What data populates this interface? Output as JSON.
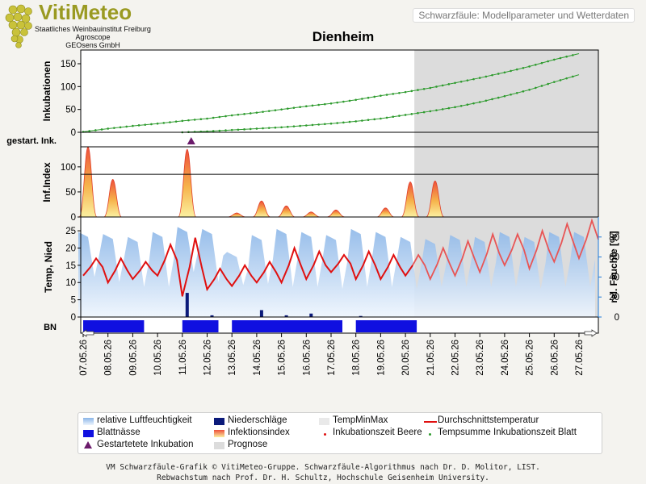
{
  "header": {
    "logo_title": "VitiMeteo",
    "logo_lines": [
      "Staatliches Weinbauinstitut Freiburg",
      "Agroscope",
      "GEOsens GmbH"
    ],
    "page_subtitle": "Schwarzfäule: Modellparameter und Wetterdaten"
  },
  "chart_title": "Dienheim",
  "colors": {
    "grey_prognose": "#dcdcdc",
    "incubation_green": "#2e9b2e",
    "humidity_blue": "#9ec3ea",
    "rain_navy": "#0b1a7a",
    "wetness_blue": "#1010e0",
    "temp_red": "#e01010",
    "marker_purple": "#6b1b6b"
  },
  "chart_data": {
    "type": "line",
    "x": [
      "07.05.26",
      "08.05.26",
      "09.05.26",
      "10.05.26",
      "11.05.26",
      "12.05.26",
      "13.05.26",
      "14.05.26",
      "15.05.26",
      "16.05.26",
      "17.05.26",
      "18.05.26",
      "19.05.26",
      "20.05.26",
      "21.05.26",
      "22.05.26",
      "23.05.26",
      "24.05.26",
      "25.05.26",
      "26.05.26",
      "27.05.26"
    ],
    "prognose_start": "20.05.26",
    "panels": [
      {
        "id": "inkubationen",
        "ylabel": "Inkubationen",
        "ylim": [
          0,
          180
        ],
        "yticks": [
          0,
          50,
          100,
          150
        ],
        "series": [
          {
            "name": "Inkubationszeit Beere",
            "values": [
              1,
              8,
              14,
              19,
              25,
              30,
              37,
              43,
              50,
              57,
              63,
              71,
              80,
              88,
              97,
              108,
              119,
              131,
              144,
              159,
              172
            ]
          },
          {
            "name": "Tempsumme Inkubationszeit Blatt",
            "values": [
              null,
              null,
              null,
              null,
              0,
              2,
              5,
              8,
              11,
              15,
              19,
              24,
              30,
              38,
              46,
              55,
              66,
              79,
              93,
              110,
              126
            ]
          }
        ]
      },
      {
        "id": "gestartete_inkubation",
        "ylabel": "gestart. Ink.",
        "markers": [
          "11.05.26"
        ]
      },
      {
        "id": "infektionsindex",
        "ylabel": "Inf.Index",
        "ylim": [
          0,
          140
        ],
        "yticks": [
          0,
          50,
          100
        ],
        "threshold": 85,
        "peaks": [
          {
            "x": "07.05.26",
            "value": 140
          },
          {
            "x": "08.05.26",
            "value": 75
          },
          {
            "x": "11.05.26",
            "value": 135
          },
          {
            "x": "13.05.26",
            "value": 8
          },
          {
            "x": "14.05.26",
            "value": 32
          },
          {
            "x": "15.05.26",
            "value": 22
          },
          {
            "x": "16.05.26",
            "value": 10
          },
          {
            "x": "17.05.26",
            "value": 14
          },
          {
            "x": "19.05.26",
            "value": 18
          },
          {
            "x": "20.05.26",
            "value": 70
          },
          {
            "x": "21.05.26",
            "value": 72
          }
        ]
      },
      {
        "id": "temperatur",
        "ylabel": "Temp, Nied",
        "ylabel_right": "rel. Feuchte [%]",
        "ylim": [
          0,
          29
        ],
        "yticks": [
          0,
          5,
          10,
          15,
          20,
          25
        ],
        "ylim_right": [
          0,
          100
        ],
        "yticks_right": [
          0,
          20,
          40,
          60,
          80
        ],
        "series": [
          {
            "name": "Durchschnittstemperatur",
            "daily_min": [
              12,
              10,
              11,
              12,
              6,
              8,
              9,
              10,
              10,
              11,
              13,
              11,
              11,
              12,
              11,
              12,
              13,
              15,
              14,
              16,
              17
            ],
            "daily_max": [
              17,
              17,
              16,
              21,
              23,
              14,
              15,
              16,
              20,
              19,
              18,
              19,
              18,
              18,
              20,
              22,
              24,
              24,
              25,
              27,
              28
            ]
          },
          {
            "name": "relative Luftfeuchtigkeit",
            "daily_max": [
              85,
              83,
              80,
              85,
              90,
              88,
              65,
              82,
              88,
              85,
              82,
              88,
              85,
              80,
              78,
              82,
              80,
              85,
              80,
              85,
              85
            ],
            "daily_min": [
              40,
              35,
              30,
              30,
              45,
              35,
              32,
              33,
              30,
              30,
              28,
              30,
              30,
              28,
              30,
              30,
              30,
              30,
              28,
              30,
              30
            ]
          },
          {
            "name": "Niederschläge",
            "values": [
              0,
              0,
              0,
              0,
              7,
              0.5,
              0,
              2,
              0.5,
              1,
              0,
              0.3,
              0,
              0,
              0,
              0,
              0,
              0,
              0,
              0,
              0
            ]
          }
        ]
      },
      {
        "id": "blattnaesse",
        "ylabel": "BN",
        "intervals": [
          [
            "07.05.26",
            "07.05.26"
          ],
          [
            "07.05.26",
            "08.05.26"
          ],
          [
            "08.05.26",
            "09.05.26"
          ],
          [
            "11.05.26",
            "12.05.26"
          ],
          [
            "13.05.26",
            "14.05.26"
          ],
          [
            "14.05.26",
            "15.05.26"
          ],
          [
            "15.05.26",
            "16.05.26"
          ],
          [
            "16.05.26",
            "17.05.26"
          ],
          [
            "18.05.26",
            "19.05.26"
          ],
          [
            "19.05.26",
            "20.05.26"
          ]
        ]
      }
    ],
    "legend": [
      {
        "name": "relative Luftfeuchtigkeit",
        "kind": "humidity"
      },
      {
        "name": "Niederschläge",
        "kind": "rain"
      },
      {
        "name": "TempMinMax",
        "kind": "tempminmax"
      },
      {
        "name": "Durchschnittstemperatur",
        "kind": "templine"
      },
      {
        "name": "Blattnässe",
        "kind": "wetness"
      },
      {
        "name": "Infektionsindex",
        "kind": "infindex"
      },
      {
        "name": "Inkubationszeit Beere",
        "kind": "dotred"
      },
      {
        "name": "Tempsumme Inkubationszeit Blatt",
        "kind": "dotgreen"
      },
      {
        "name": "Gestartetete Inkubation",
        "kind": "triangle"
      },
      {
        "name": "Prognose",
        "kind": "prognose"
      }
    ]
  },
  "footer": {
    "line1": "VM Schwarzfäule-Grafik © VitiMeteo-Gruppe. Schwarzfäule-Algorithmus nach Dr. D. Molitor, LIST.",
    "line2": "Rebwachstum nach Prof. Dr. H. Schultz, Hochschule Geisenheim University."
  }
}
